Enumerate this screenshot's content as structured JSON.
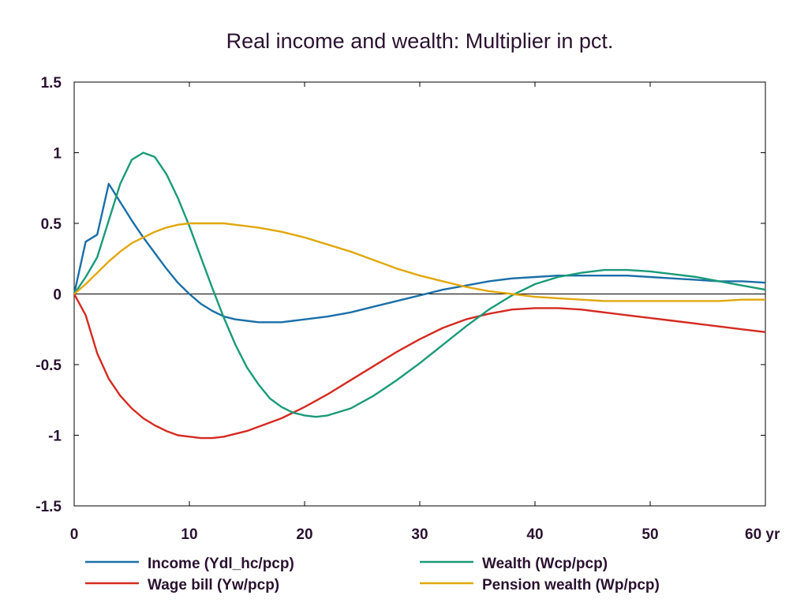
{
  "chart_data": {
    "type": "line",
    "title": "Real income and wealth: Multiplier in pct.",
    "xlabel": "",
    "ylabel": "",
    "x_unit_label": "yr",
    "xlim": [
      0,
      60
    ],
    "ylim": [
      -1.5,
      1.5
    ],
    "xticks": [
      0,
      10,
      20,
      30,
      40,
      50,
      60
    ],
    "yticks": [
      -1.5,
      -1,
      -0.5,
      0,
      0.5,
      1,
      1.5
    ],
    "ytick_labels": [
      "-1.5",
      "-1",
      "-0.5",
      "0",
      "0.5",
      "1",
      "1.5"
    ],
    "xtick_labels": [
      "0",
      "10",
      "20",
      "30",
      "40",
      "50",
      "60 yr"
    ],
    "grid": false,
    "zero_line": true,
    "legend_position": "bottom",
    "series": [
      {
        "name": "Income (Ydl_hc/pcp)",
        "color": "#1a6fa8",
        "points": [
          [
            0,
            0
          ],
          [
            1,
            0.37
          ],
          [
            2,
            0.42
          ],
          [
            3,
            0.78
          ],
          [
            4,
            0.65
          ],
          [
            5,
            0.52
          ],
          [
            6,
            0.4
          ],
          [
            7,
            0.29
          ],
          [
            8,
            0.18
          ],
          [
            9,
            0.08
          ],
          [
            10,
            0.0
          ],
          [
            11,
            -0.07
          ],
          [
            12,
            -0.12
          ],
          [
            13,
            -0.16
          ],
          [
            14,
            -0.18
          ],
          [
            15,
            -0.19
          ],
          [
            16,
            -0.2
          ],
          [
            17,
            -0.2
          ],
          [
            18,
            -0.2
          ],
          [
            19,
            -0.19
          ],
          [
            20,
            -0.18
          ],
          [
            22,
            -0.16
          ],
          [
            24,
            -0.13
          ],
          [
            26,
            -0.09
          ],
          [
            28,
            -0.05
          ],
          [
            30,
            -0.01
          ],
          [
            32,
            0.03
          ],
          [
            34,
            0.06
          ],
          [
            36,
            0.09
          ],
          [
            38,
            0.11
          ],
          [
            40,
            0.12
          ],
          [
            42,
            0.13
          ],
          [
            44,
            0.13
          ],
          [
            46,
            0.13
          ],
          [
            48,
            0.13
          ],
          [
            50,
            0.12
          ],
          [
            52,
            0.11
          ],
          [
            54,
            0.1
          ],
          [
            56,
            0.09
          ],
          [
            58,
            0.09
          ],
          [
            60,
            0.08
          ]
        ]
      },
      {
        "name": "Wage bill (Yw/pcp)",
        "color": "#d42a20",
        "points": [
          [
            0,
            0
          ],
          [
            1,
            -0.15
          ],
          [
            2,
            -0.42
          ],
          [
            3,
            -0.6
          ],
          [
            4,
            -0.72
          ],
          [
            5,
            -0.81
          ],
          [
            6,
            -0.88
          ],
          [
            7,
            -0.93
          ],
          [
            8,
            -0.97
          ],
          [
            9,
            -1.0
          ],
          [
            10,
            -1.01
          ],
          [
            11,
            -1.02
          ],
          [
            12,
            -1.02
          ],
          [
            13,
            -1.01
          ],
          [
            14,
            -0.99
          ],
          [
            15,
            -0.97
          ],
          [
            16,
            -0.94
          ],
          [
            18,
            -0.88
          ],
          [
            20,
            -0.8
          ],
          [
            22,
            -0.71
          ],
          [
            24,
            -0.61
          ],
          [
            26,
            -0.51
          ],
          [
            28,
            -0.41
          ],
          [
            30,
            -0.32
          ],
          [
            32,
            -0.24
          ],
          [
            34,
            -0.18
          ],
          [
            36,
            -0.14
          ],
          [
            38,
            -0.11
          ],
          [
            40,
            -0.1
          ],
          [
            42,
            -0.1
          ],
          [
            44,
            -0.11
          ],
          [
            46,
            -0.13
          ],
          [
            48,
            -0.15
          ],
          [
            50,
            -0.17
          ],
          [
            52,
            -0.19
          ],
          [
            54,
            -0.21
          ],
          [
            56,
            -0.23
          ],
          [
            58,
            -0.25
          ],
          [
            60,
            -0.27
          ]
        ]
      },
      {
        "name": "Wealth (Wcp/pcp)",
        "color": "#1a9a78",
        "points": [
          [
            0,
            0
          ],
          [
            1,
            0.12
          ],
          [
            2,
            0.26
          ],
          [
            3,
            0.52
          ],
          [
            4,
            0.78
          ],
          [
            5,
            0.95
          ],
          [
            6,
            1.0
          ],
          [
            7,
            0.97
          ],
          [
            8,
            0.85
          ],
          [
            9,
            0.68
          ],
          [
            10,
            0.48
          ],
          [
            11,
            0.26
          ],
          [
            12,
            0.04
          ],
          [
            13,
            -0.17
          ],
          [
            14,
            -0.36
          ],
          [
            15,
            -0.52
          ],
          [
            16,
            -0.64
          ],
          [
            17,
            -0.74
          ],
          [
            18,
            -0.8
          ],
          [
            19,
            -0.84
          ],
          [
            20,
            -0.86
          ],
          [
            21,
            -0.87
          ],
          [
            22,
            -0.86
          ],
          [
            24,
            -0.81
          ],
          [
            26,
            -0.72
          ],
          [
            28,
            -0.61
          ],
          [
            30,
            -0.49
          ],
          [
            32,
            -0.36
          ],
          [
            34,
            -0.23
          ],
          [
            36,
            -0.11
          ],
          [
            38,
            -0.01
          ],
          [
            40,
            0.07
          ],
          [
            42,
            0.12
          ],
          [
            44,
            0.15
          ],
          [
            46,
            0.17
          ],
          [
            48,
            0.17
          ],
          [
            50,
            0.16
          ],
          [
            52,
            0.14
          ],
          [
            54,
            0.12
          ],
          [
            56,
            0.09
          ],
          [
            58,
            0.06
          ],
          [
            60,
            0.03
          ]
        ]
      },
      {
        "name": "Pension wealth (Wp/pcp)",
        "color": "#e1a70c",
        "points": [
          [
            0,
            0
          ],
          [
            1,
            0.07
          ],
          [
            2,
            0.15
          ],
          [
            3,
            0.23
          ],
          [
            4,
            0.3
          ],
          [
            5,
            0.36
          ],
          [
            6,
            0.4
          ],
          [
            7,
            0.44
          ],
          [
            8,
            0.47
          ],
          [
            9,
            0.49
          ],
          [
            10,
            0.5
          ],
          [
            11,
            0.5
          ],
          [
            12,
            0.5
          ],
          [
            13,
            0.5
          ],
          [
            14,
            0.49
          ],
          [
            16,
            0.47
          ],
          [
            18,
            0.44
          ],
          [
            20,
            0.4
          ],
          [
            22,
            0.35
          ],
          [
            24,
            0.3
          ],
          [
            26,
            0.24
          ],
          [
            28,
            0.18
          ],
          [
            30,
            0.13
          ],
          [
            32,
            0.09
          ],
          [
            34,
            0.05
          ],
          [
            36,
            0.02
          ],
          [
            38,
            0.0
          ],
          [
            40,
            -0.02
          ],
          [
            42,
            -0.03
          ],
          [
            44,
            -0.04
          ],
          [
            46,
            -0.05
          ],
          [
            48,
            -0.05
          ],
          [
            50,
            -0.05
          ],
          [
            52,
            -0.05
          ],
          [
            54,
            -0.05
          ],
          [
            56,
            -0.05
          ],
          [
            58,
            -0.04
          ],
          [
            60,
            -0.04
          ]
        ]
      }
    ]
  }
}
